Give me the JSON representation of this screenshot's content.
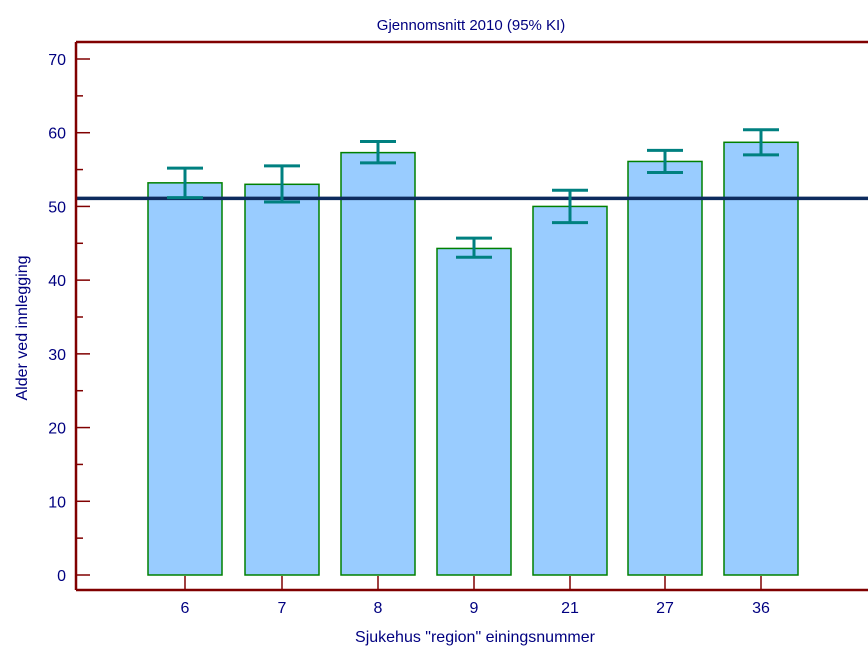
{
  "chart_data": {
    "type": "bar",
    "title": "Gjennomsnitt 2010 (95% KI)",
    "xlabel": "Sjukehus \"region\" einingsnummer",
    "ylabel": "Alder ved innlegging",
    "categories": [
      "6",
      "7",
      "8",
      "9",
      "21",
      "27",
      "36"
    ],
    "values": [
      53.2,
      53.0,
      57.3,
      44.3,
      50.0,
      56.1,
      58.7
    ],
    "ci_lower": [
      51.2,
      50.6,
      55.9,
      43.1,
      47.8,
      54.6,
      57.0
    ],
    "ci_upper": [
      55.2,
      55.5,
      58.8,
      45.7,
      52.2,
      57.6,
      60.4
    ],
    "reference_line": 51.1,
    "ylim": [
      0,
      70
    ],
    "yticks": [
      0,
      10,
      20,
      30,
      40,
      50,
      60,
      70
    ],
    "grid": false,
    "colors": {
      "bar_fill": "#99ccff",
      "bar_stroke": "#008000",
      "error_bar": "#008080",
      "reference_line": "#0d2b5e",
      "axis": "#800000",
      "text": "#000080"
    }
  }
}
